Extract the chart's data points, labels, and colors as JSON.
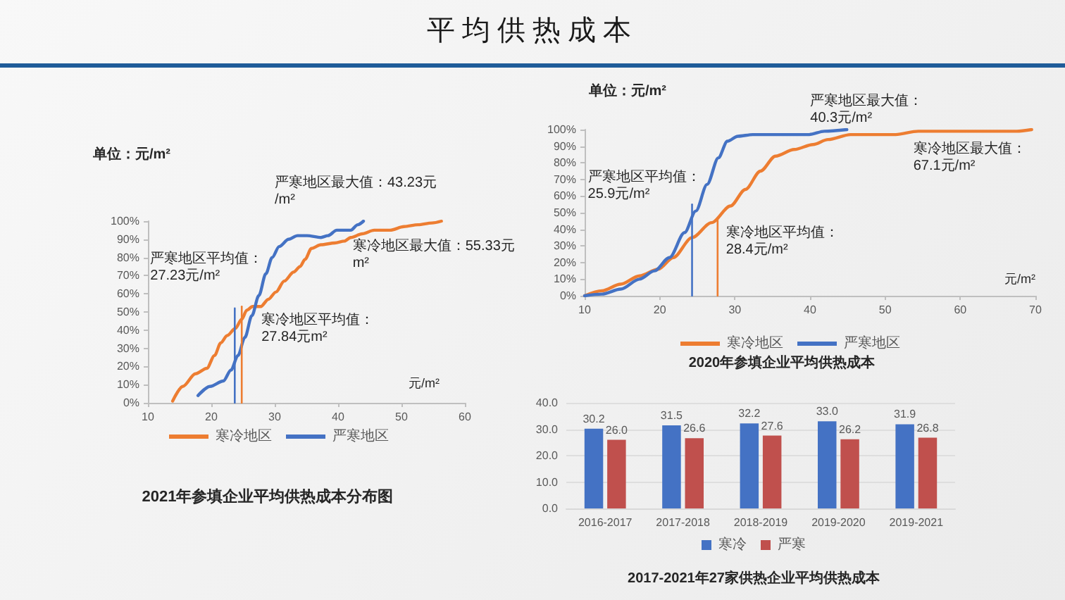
{
  "chart_data": [
    {
      "type": "line",
      "title": "2021年参填企业平均供热成本分布图",
      "xlabel": "元/m²",
      "ylabel": "单位：元/m²",
      "xlim": [
        10,
        60
      ],
      "xticks": [
        10,
        20,
        30,
        40,
        50,
        60
      ],
      "ylim": [
        0,
        100
      ],
      "yticks": [
        {
          "value": 0,
          "label": "0%"
        },
        {
          "value": 10,
          "label": "10%"
        },
        {
          "value": 20,
          "label": "20%"
        },
        {
          "value": 30,
          "label": "30%"
        },
        {
          "value": 40,
          "label": "40%"
        },
        {
          "value": 50,
          "label": "50%"
        },
        {
          "value": 60,
          "label": "60%"
        },
        {
          "value": 70,
          "label": "70%"
        },
        {
          "value": 80,
          "label": "80%"
        },
        {
          "value": 90,
          "label": "90%"
        },
        {
          "value": 100,
          "label": "100%"
        }
      ],
      "legend": "bottom",
      "marker": "none",
      "series": [
        {
          "name": "寒冷地区",
          "color": "#ed7d31",
          "x": [
            13.9,
            15.5,
            17.5,
            19.3,
            20.5,
            21.5,
            22.5,
            23.8,
            24.8,
            25.6,
            26.5,
            27.8,
            29.0,
            30.2,
            31.5,
            33.0,
            34.0,
            34.8,
            35.8,
            37.3,
            39.5,
            41.0,
            42.0,
            43.8,
            45.7,
            48.2,
            50.4,
            52.6,
            54.8,
            56.3
          ],
          "values": [
            1,
            9,
            16,
            19,
            26,
            33,
            37,
            41,
            46,
            51,
            53,
            53,
            57,
            61,
            67,
            72,
            75,
            79,
            85,
            87,
            88,
            89,
            91,
            93,
            95,
            95,
            97,
            98,
            99,
            100
          ]
        },
        {
          "name": "严寒地区",
          "color": "#4472c4",
          "x": [
            17.9,
            19.8,
            21.9,
            23.1,
            24.2,
            25.3,
            26.4,
            27.5,
            28.6,
            29.6,
            30.7,
            32.2,
            33.6,
            35.1,
            37.3,
            38.4,
            39.8,
            40.9,
            42.0,
            43.1,
            44.0
          ],
          "values": [
            4,
            9,
            12,
            18,
            26,
            36,
            48,
            59,
            71,
            80,
            86,
            90,
            92,
            92,
            91,
            92,
            95,
            95,
            95,
            98,
            100
          ]
        },
        {
          "color": "#4472c4",
          "x": [
            23.7,
            23.7
          ],
          "values": [
            0,
            52
          ]
        },
        {
          "color": "#ed7d31",
          "x": [
            24.8,
            24.8
          ],
          "values": [
            0,
            53
          ]
        }
      ],
      "annotations": [
        "平均供热成本",
        {
          "text": "严寒地区平均值：27.23元/m²",
          "x": 23.7,
          "y": 52
        },
        {
          "text": "寒冷地区平均值：27.84元m²",
          "x": 24.8,
          "y": 53
        },
        {
          "text": "严寒地区最大值：43.23元/m²",
          "x": 44.0,
          "y": 100
        },
        {
          "text": "寒冷地区最大值：55.33元m²",
          "x": 56.3,
          "y": 100
        }
      ]
    },
    {
      "type": "line",
      "title": "2020年参填企业平均供热成本",
      "xlabel": "元/m²",
      "ylabel": "单位：元/m²",
      "xlim": [
        10,
        70
      ],
      "xticks": [
        10,
        20,
        30,
        40,
        50,
        60,
        70
      ],
      "ylim": [
        0,
        100
      ],
      "yticks": [
        {
          "value": 0,
          "label": "0%"
        },
        {
          "value": 10,
          "label": "10%"
        },
        {
          "value": 20,
          "label": "20%"
        },
        {
          "value": 30,
          "label": "30%"
        },
        {
          "value": 40,
          "label": "40%"
        },
        {
          "value": 50,
          "label": "50%"
        },
        {
          "value": 60,
          "label": "60%"
        },
        {
          "value": 70,
          "label": "70%"
        },
        {
          "value": 80,
          "label": "80%"
        },
        {
          "value": 90,
          "label": "90%"
        },
        {
          "value": 100,
          "label": "100%"
        }
      ],
      "legend": "bottom",
      "marker": "none",
      "series": [
        {
          "name": "寒冷地区",
          "color": "#ed7d31",
          "x": [
            10,
            12.3,
            14.8,
            17.3,
            19.8,
            21.8,
            24.3,
            26.9,
            29.4,
            31.4,
            33.4,
            35.4,
            37.9,
            40.4,
            42.4,
            45.4,
            48.4,
            51.4,
            54.4,
            59.4,
            64.5,
            67.5,
            69.5
          ],
          "values": [
            0,
            3,
            7,
            12,
            16,
            23,
            35,
            44,
            54,
            64,
            75,
            84,
            88,
            91,
            94,
            97,
            97,
            97,
            99,
            99,
            99,
            99,
            100
          ]
        },
        {
          "name": "严寒地区",
          "color": "#4472c4",
          "x": [
            10,
            12.3,
            14.8,
            17.3,
            19.3,
            21.3,
            23.3,
            24.8,
            26.3,
            27.8,
            29.0,
            30.4,
            32.4,
            35.4,
            37.9,
            39.9,
            41.9,
            44.9
          ],
          "values": [
            0,
            1,
            4,
            10,
            15,
            23,
            38,
            51,
            67,
            83,
            93,
            96,
            97,
            97,
            97,
            97,
            99,
            100
          ]
        },
        {
          "color": "#4472c4",
          "x": [
            24.3,
            24.3
          ],
          "values": [
            0,
            55
          ]
        },
        {
          "color": "#ed7d31",
          "x": [
            27.7,
            27.7
          ],
          "values": [
            0,
            46
          ]
        }
      ],
      "annotations": [
        {
          "text": "严寒地区最大值：40.3元/m²",
          "x": 44.9,
          "y": 100
        },
        {
          "text": "寒冷地区最大值：67.1元/m²",
          "x": 69.5,
          "y": 100
        },
        {
          "text": "严寒地区平均值：25.9元/m²",
          "x": 24.3,
          "y": 55
        },
        {
          "text": "寒冷地区平均值：28.4元/m²",
          "x": 27.7,
          "y": 46
        }
      ]
    },
    {
      "type": "bar",
      "title": "2017-2021年27家供热企业平均供热成本",
      "categories": [
        "2016-2017",
        "2017-2018",
        "2018-2019",
        "2019-2020",
        "2019-2021"
      ],
      "ylim": [
        0,
        40
      ],
      "yticks": [
        {
          "value": 0,
          "label": "0.0"
        },
        {
          "value": 10,
          "label": "10.0"
        },
        {
          "value": 20,
          "label": "20.0"
        },
        {
          "value": 30,
          "label": "30.0"
        },
        {
          "value": 40,
          "label": "40.0"
        }
      ],
      "grid": "y",
      "legend": "bottom",
      "series": [
        {
          "name": "寒冷",
          "color": "#4472c4",
          "values": [
            30.2,
            31.5,
            32.2,
            33.0,
            31.9
          ],
          "value_labels": [
            "30.2",
            "31.5",
            "32.2",
            "33.0",
            "31.9"
          ]
        },
        {
          "name": "严寒",
          "color": "#c0504d",
          "values": [
            26.0,
            26.6,
            27.6,
            26.2,
            26.8
          ],
          "value_labels": [
            "26.0",
            "26.6",
            "27.6",
            "26.2",
            "26.8"
          ]
        }
      ]
    }
  ]
}
